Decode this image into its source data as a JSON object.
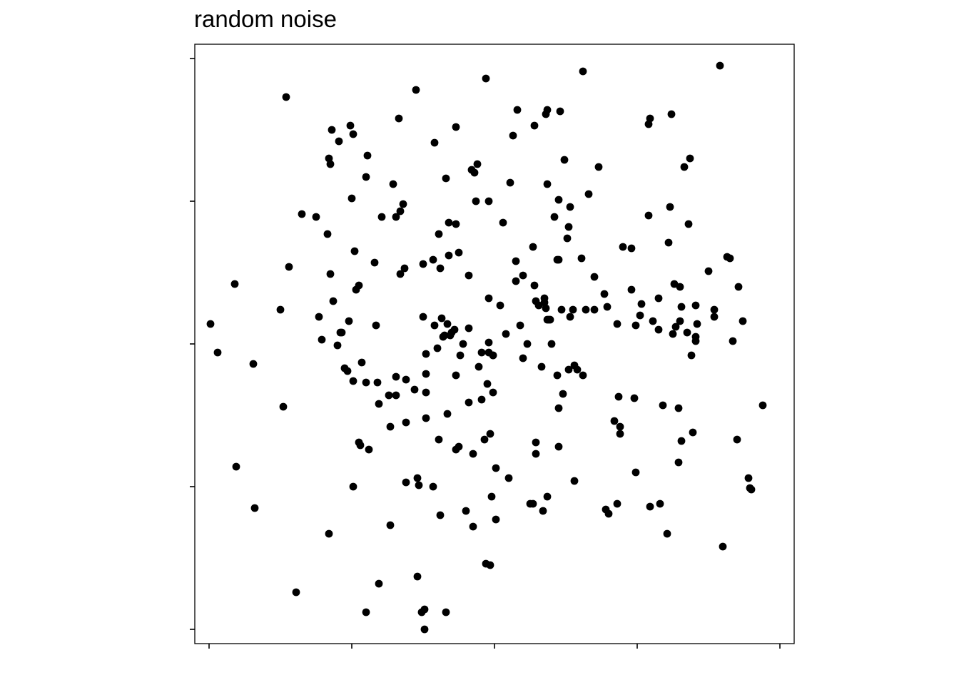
{
  "chart_data": {
    "type": "scatter",
    "title": "random noise",
    "xlabel": "",
    "ylabel": "",
    "xlim": [
      -2.1,
      2.1
    ],
    "ylim": [
      -2.1,
      2.1
    ],
    "x_ticks": [
      -2,
      -1,
      0,
      1,
      2
    ],
    "y_ticks": [
      -2,
      -1,
      0,
      1,
      2
    ],
    "x_tick_labels_visible": false,
    "y_tick_labels_visible": false,
    "grid": false,
    "legend": "none",
    "point_color": "#000000",
    "points": [
      [
        -1.99,
        0.14
      ],
      [
        -1.94,
        -0.06
      ],
      [
        -1.82,
        0.42
      ],
      [
        -1.81,
        -0.86
      ],
      [
        -1.69,
        -0.14
      ],
      [
        -1.68,
        -1.15
      ],
      [
        -1.5,
        0.24
      ],
      [
        -1.48,
        -0.44
      ],
      [
        -1.46,
        1.73
      ],
      [
        -1.44,
        0.54
      ],
      [
        -1.39,
        -1.74
      ],
      [
        -1.35,
        0.91
      ],
      [
        -1.25,
        0.89
      ],
      [
        -1.23,
        0.19
      ],
      [
        -1.21,
        0.03
      ],
      [
        -1.17,
        0.77
      ],
      [
        -1.16,
        1.3
      ],
      [
        -1.16,
        -1.33
      ],
      [
        -1.15,
        1.26
      ],
      [
        -1.15,
        0.49
      ],
      [
        -1.14,
        1.5
      ],
      [
        -1.13,
        0.3
      ],
      [
        -1.1,
        -0.01
      ],
      [
        -1.09,
        1.42
      ],
      [
        -1.08,
        0.08
      ],
      [
        -1.07,
        0.08
      ],
      [
        -1.05,
        -0.17
      ],
      [
        -1.03,
        -0.19
      ],
      [
        -1.02,
        0.16
      ],
      [
        -1.01,
        1.53
      ],
      [
        -1.0,
        1.02
      ],
      [
        -0.99,
        1.47
      ],
      [
        -0.99,
        -0.26
      ],
      [
        -0.99,
        -1.0
      ],
      [
        -0.98,
        0.65
      ],
      [
        -0.97,
        0.38
      ],
      [
        -0.95,
        -0.69
      ],
      [
        -0.95,
        0.41
      ],
      [
        -0.94,
        -0.71
      ],
      [
        -0.93,
        -0.13
      ],
      [
        -0.9,
        -0.27
      ],
      [
        -0.9,
        -1.88
      ],
      [
        -0.9,
        1.17
      ],
      [
        -0.89,
        1.32
      ],
      [
        -0.88,
        -0.74
      ],
      [
        -0.84,
        0.57
      ],
      [
        -0.83,
        0.13
      ],
      [
        -0.82,
        -0.27
      ],
      [
        -0.81,
        -0.42
      ],
      [
        -0.81,
        -1.68
      ],
      [
        -0.79,
        0.89
      ],
      [
        -0.74,
        -0.36
      ],
      [
        -0.73,
        -0.58
      ],
      [
        -0.73,
        -1.27
      ],
      [
        -0.71,
        1.12
      ],
      [
        -0.69,
        0.89
      ],
      [
        -0.69,
        -0.36
      ],
      [
        -0.69,
        -0.23
      ],
      [
        -0.67,
        1.58
      ],
      [
        -0.66,
        0.49
      ],
      [
        -0.66,
        0.93
      ],
      [
        -0.64,
        0.98
      ],
      [
        -0.63,
        0.53
      ],
      [
        -0.62,
        -0.55
      ],
      [
        -0.62,
        -0.25
      ],
      [
        -0.62,
        -0.97
      ],
      [
        -0.56,
        -0.32
      ],
      [
        -0.55,
        1.78
      ],
      [
        -0.54,
        -1.63
      ],
      [
        -0.54,
        -0.94
      ],
      [
        -0.53,
        -0.99
      ],
      [
        -0.51,
        -1.88
      ],
      [
        -0.5,
        0.56
      ],
      [
        -0.5,
        0.19
      ],
      [
        -0.49,
        -2.0
      ],
      [
        -0.49,
        -1.86
      ],
      [
        -0.48,
        -0.52
      ],
      [
        -0.48,
        -0.07
      ],
      [
        -0.48,
        -0.34
      ],
      [
        -0.48,
        -0.21
      ],
      [
        -0.43,
        -1.0
      ],
      [
        -0.43,
        0.59
      ],
      [
        -0.42,
        0.13
      ],
      [
        -0.42,
        1.41
      ],
      [
        -0.4,
        -0.03
      ],
      [
        -0.39,
        0.77
      ],
      [
        -0.39,
        -0.67
      ],
      [
        -0.38,
        -1.2
      ],
      [
        -0.38,
        0.53
      ],
      [
        -0.37,
        0.18
      ],
      [
        -0.36,
        0.05
      ],
      [
        -0.35,
        0.06
      ],
      [
        -0.34,
        -1.88
      ],
      [
        -0.34,
        1.16
      ],
      [
        -0.33,
        0.14
      ],
      [
        -0.33,
        -0.49
      ],
      [
        -0.32,
        0.85
      ],
      [
        -0.32,
        0.62
      ],
      [
        -0.31,
        0.06
      ],
      [
        -0.3,
        0.08
      ],
      [
        -0.28,
        0.1
      ],
      [
        -0.27,
        1.52
      ],
      [
        -0.27,
        -0.74
      ],
      [
        -0.27,
        -0.22
      ],
      [
        -0.27,
        0.84
      ],
      [
        -0.25,
        0.64
      ],
      [
        -0.25,
        -0.72
      ],
      [
        -0.24,
        -0.08
      ],
      [
        -0.22,
        0.0
      ],
      [
        -0.2,
        -1.17
      ],
      [
        -0.18,
        0.11
      ],
      [
        -0.18,
        -0.41
      ],
      [
        -0.18,
        0.48
      ],
      [
        -0.16,
        1.22
      ],
      [
        -0.15,
        -1.28
      ],
      [
        -0.15,
        -0.77
      ],
      [
        -0.14,
        1.2
      ],
      [
        -0.13,
        1.0
      ],
      [
        -0.12,
        1.26
      ],
      [
        -0.11,
        -0.16
      ],
      [
        -0.09,
        -0.39
      ],
      [
        -0.09,
        -0.06
      ],
      [
        -0.07,
        -0.67
      ],
      [
        -0.06,
        1.86
      ],
      [
        -0.06,
        -1.54
      ],
      [
        -0.05,
        -0.28
      ],
      [
        -0.04,
        1.0
      ],
      [
        -0.04,
        0.32
      ],
      [
        -0.04,
        0.01
      ],
      [
        -0.04,
        -0.06
      ],
      [
        -0.03,
        -0.63
      ],
      [
        -0.03,
        -1.55
      ],
      [
        -0.02,
        -1.07
      ],
      [
        -0.01,
        -0.08
      ],
      [
        -0.01,
        -0.34
      ],
      [
        -0.01,
        -0.08
      ],
      [
        0.01,
        -0.87
      ],
      [
        0.01,
        -1.23
      ],
      [
        0.04,
        0.27
      ],
      [
        0.06,
        0.85
      ],
      [
        0.08,
        0.07
      ],
      [
        0.1,
        -0.94
      ],
      [
        0.11,
        1.13
      ],
      [
        0.13,
        1.46
      ],
      [
        0.15,
        0.58
      ],
      [
        0.15,
        0.44
      ],
      [
        0.16,
        1.64
      ],
      [
        0.18,
        0.13
      ],
      [
        0.2,
        -0.1
      ],
      [
        0.2,
        0.48
      ],
      [
        0.23,
        0.0
      ],
      [
        0.25,
        -1.12
      ],
      [
        0.27,
        -1.12
      ],
      [
        0.27,
        0.68
      ],
      [
        0.28,
        0.41
      ],
      [
        0.28,
        1.53
      ],
      [
        0.29,
        0.3
      ],
      [
        0.29,
        -0.69
      ],
      [
        0.29,
        -0.77
      ],
      [
        0.31,
        0.27
      ],
      [
        0.33,
        -0.16
      ],
      [
        0.34,
        -1.17
      ],
      [
        0.35,
        0.29
      ],
      [
        0.35,
        0.32
      ],
      [
        0.36,
        0.25
      ],
      [
        0.36,
        1.61
      ],
      [
        0.37,
        0.17
      ],
      [
        0.37,
        1.64
      ],
      [
        0.37,
        -1.07
      ],
      [
        0.37,
        1.12
      ],
      [
        0.38,
        0.17
      ],
      [
        0.39,
        0.17
      ],
      [
        0.4,
        0.0
      ],
      [
        0.42,
        0.89
      ],
      [
        0.44,
        0.59
      ],
      [
        0.44,
        -0.22
      ],
      [
        0.45,
        1.01
      ],
      [
        0.45,
        0.59
      ],
      [
        0.45,
        -0.45
      ],
      [
        0.45,
        -0.72
      ],
      [
        0.46,
        1.63
      ],
      [
        0.47,
        0.24
      ],
      [
        0.48,
        -0.35
      ],
      [
        0.49,
        1.29
      ],
      [
        0.51,
        0.74
      ],
      [
        0.52,
        0.82
      ],
      [
        0.52,
        -0.18
      ],
      [
        0.53,
        0.19
      ],
      [
        0.53,
        0.96
      ],
      [
        0.55,
        0.24
      ],
      [
        0.56,
        -0.15
      ],
      [
        0.56,
        -0.96
      ],
      [
        0.58,
        -0.18
      ],
      [
        0.61,
        0.6
      ],
      [
        0.62,
        -0.22
      ],
      [
        0.62,
        1.91
      ],
      [
        0.64,
        0.24
      ],
      [
        0.66,
        1.05
      ],
      [
        0.7,
        0.47
      ],
      [
        0.7,
        0.24
      ],
      [
        0.73,
        1.24
      ],
      [
        0.77,
        0.35
      ],
      [
        0.78,
        -1.16
      ],
      [
        0.79,
        0.26
      ],
      [
        0.8,
        -1.19
      ],
      [
        0.84,
        -0.54
      ],
      [
        0.86,
        -1.12
      ],
      [
        0.86,
        0.14
      ],
      [
        0.87,
        -0.37
      ],
      [
        0.88,
        -0.58
      ],
      [
        0.88,
        -0.63
      ],
      [
        0.9,
        0.68
      ],
      [
        0.96,
        0.38
      ],
      [
        0.96,
        0.67
      ],
      [
        0.98,
        -0.38
      ],
      [
        0.99,
        -0.9
      ],
      [
        0.99,
        0.13
      ],
      [
        1.02,
        0.2
      ],
      [
        1.03,
        0.28
      ],
      [
        1.08,
        1.54
      ],
      [
        1.08,
        0.9
      ],
      [
        1.09,
        -1.14
      ],
      [
        1.09,
        1.58
      ],
      [
        1.11,
        0.16
      ],
      [
        1.15,
        0.32
      ],
      [
        1.15,
        0.1
      ],
      [
        1.16,
        -1.12
      ],
      [
        1.18,
        -0.43
      ],
      [
        1.21,
        -1.33
      ],
      [
        1.22,
        0.71
      ],
      [
        1.23,
        0.96
      ],
      [
        1.24,
        1.61
      ],
      [
        1.25,
        0.07
      ],
      [
        1.26,
        0.42
      ],
      [
        1.27,
        0.12
      ],
      [
        1.29,
        -0.45
      ],
      [
        1.29,
        -0.83
      ],
      [
        1.3,
        0.16
      ],
      [
        1.3,
        0.4
      ],
      [
        1.31,
        0.26
      ],
      [
        1.31,
        -0.68
      ],
      [
        1.33,
        1.24
      ],
      [
        1.35,
        0.08
      ],
      [
        1.36,
        0.84
      ],
      [
        1.37,
        1.3
      ],
      [
        1.38,
        -0.08
      ],
      [
        1.39,
        -0.62
      ],
      [
        1.41,
        0.02
      ],
      [
        1.41,
        0.05
      ],
      [
        1.41,
        0.27
      ],
      [
        1.42,
        0.14
      ],
      [
        1.5,
        0.51
      ],
      [
        1.54,
        0.24
      ],
      [
        1.54,
        0.19
      ],
      [
        1.58,
        1.95
      ],
      [
        1.6,
        -1.42
      ],
      [
        1.63,
        0.61
      ],
      [
        1.65,
        0.6
      ],
      [
        1.67,
        0.02
      ],
      [
        1.7,
        -0.67
      ],
      [
        1.71,
        0.4
      ],
      [
        1.74,
        0.16
      ],
      [
        1.78,
        -0.94
      ],
      [
        1.79,
        -1.01
      ],
      [
        1.8,
        -1.02
      ],
      [
        1.88,
        -0.43
      ]
    ]
  }
}
